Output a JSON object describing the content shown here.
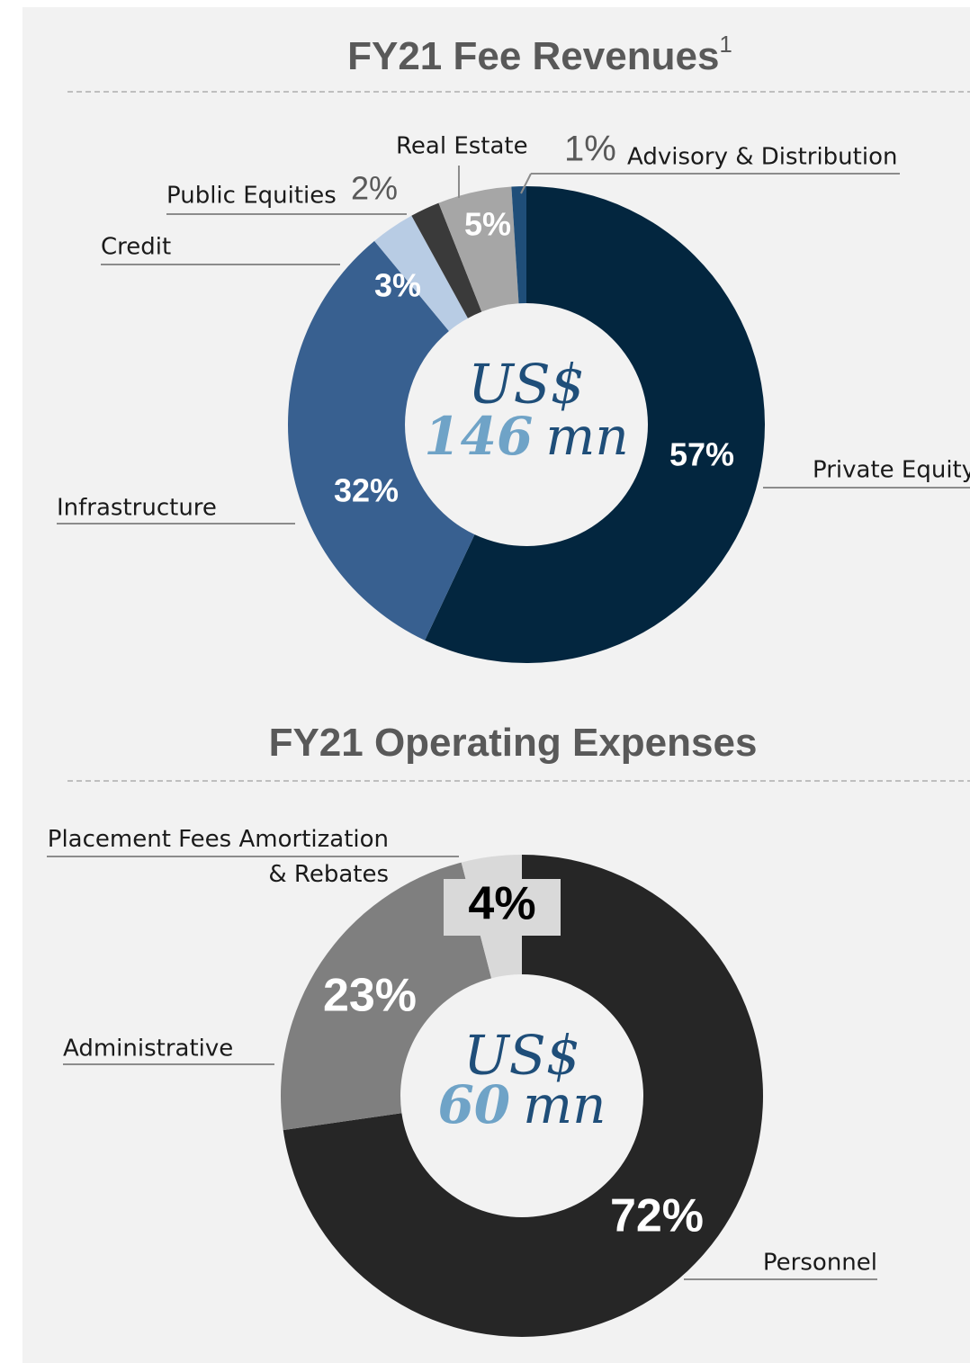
{
  "chart_data": [
    {
      "type": "donut",
      "title": "FY21 Fee Revenues",
      "title_note": "1",
      "center_label": "US$",
      "total": 146,
      "total_unit": "mn",
      "categories": [
        "Private Equity",
        "Infrastructure",
        "Credit",
        "Public Equities",
        "Real Estate",
        "Advisory & Distribution"
      ],
      "values": [
        57,
        32,
        3,
        2,
        5,
        1
      ],
      "value_labels": [
        "57%",
        "32%",
        "3%",
        "2%",
        "5%",
        "1%"
      ],
      "colors": [
        "#03263f",
        "#386090",
        "#b8cce4",
        "#3a3a3a",
        "#a6a6a6",
        "#1f4e79"
      ]
    },
    {
      "type": "donut",
      "title": "FY21 Operating Expenses",
      "center_label": "US$",
      "total": 60,
      "total_unit": "mn",
      "categories": [
        "Personnel",
        "Administrative",
        "Placement Fees Amortization & Rebates"
      ],
      "values": [
        72,
        23,
        4
      ],
      "value_labels": [
        "72%",
        "23%",
        "4%"
      ],
      "colors": [
        "#262626",
        "#7f7f7f",
        "#d9d9d9"
      ]
    }
  ]
}
